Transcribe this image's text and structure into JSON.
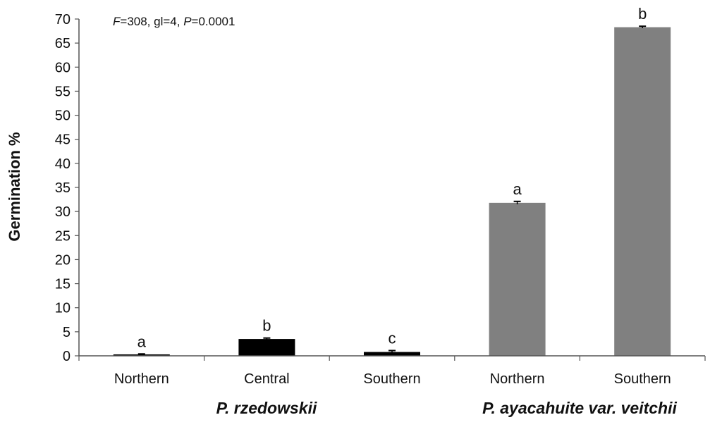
{
  "chart_data": {
    "type": "bar",
    "ylabel": "Germination %",
    "ylim": [
      0,
      70
    ],
    "ytick_step": 5,
    "grid": false,
    "annotation": {
      "f_symbol": "F",
      "f_rest": "=308, gl=4, ",
      "p_symbol": "P",
      "p_rest": "=0.0001"
    },
    "categories": [
      "Northern",
      "Central",
      "Southern",
      "Northern",
      "Southern"
    ],
    "values": [
      0.3,
      3.5,
      0.8,
      31.8,
      68.3
    ],
    "errors": [
      0.1,
      0.2,
      0.3,
      0.3,
      0.2
    ],
    "significance_letters": [
      "a",
      "b",
      "c",
      "a",
      "b"
    ],
    "bar_colors": [
      "#000000",
      "#000000",
      "#000000",
      "#808080",
      "#808080"
    ],
    "groups": [
      {
        "label": "P. rzedowskii",
        "categories": [
          0,
          1,
          2
        ]
      },
      {
        "label_main": "P. ayacahuite",
        "label_suffix": " var. veitchii",
        "categories": [
          3,
          4
        ]
      }
    ]
  }
}
